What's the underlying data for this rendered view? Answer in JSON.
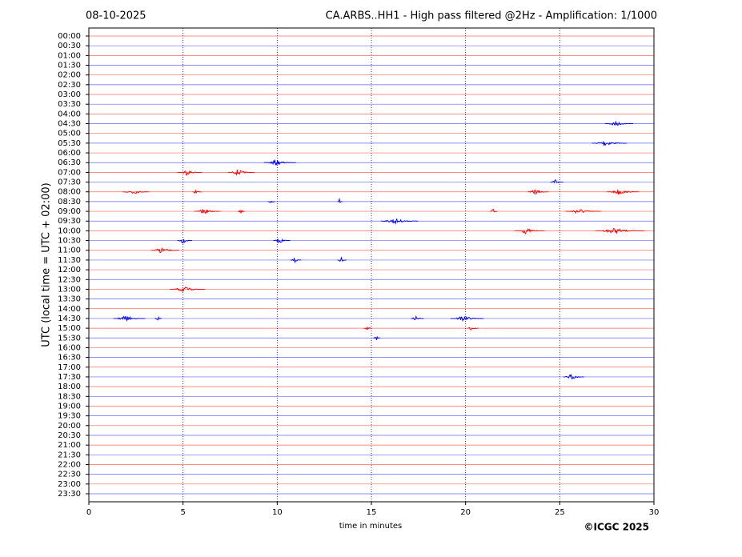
{
  "chart_data": {
    "type": "helicorder",
    "date": "08-10-2025",
    "title": "CA.ARBS..HH1 - High pass filtered @2Hz - Amplification: 1/1000",
    "xlabel": "time in minutes",
    "ylabel": "UTC (local time = UTC + 02:00)",
    "credit": "©ICGC 2025",
    "xlim": [
      0,
      30
    ],
    "xticks": [
      0,
      5,
      10,
      15,
      20,
      25,
      30
    ],
    "grid": true,
    "colors": [
      "#ff0000",
      "#0000ff"
    ],
    "rows": [
      {
        "label": "00:00",
        "bursts": []
      },
      {
        "label": "00:30",
        "bursts": []
      },
      {
        "label": "01:00",
        "bursts": []
      },
      {
        "label": "01:30",
        "bursts": []
      },
      {
        "label": "02:00",
        "bursts": []
      },
      {
        "label": "02:30",
        "bursts": []
      },
      {
        "label": "03:00",
        "bursts": []
      },
      {
        "label": "03:30",
        "bursts": []
      },
      {
        "label": "04:00",
        "bursts": []
      },
      {
        "label": "04:30",
        "bursts": [
          [
            27.4,
            28.9
          ]
        ]
      },
      {
        "label": "05:00",
        "bursts": []
      },
      {
        "label": "05:30",
        "bursts": [
          [
            26.7,
            28.6
          ]
        ]
      },
      {
        "label": "06:00",
        "bursts": []
      },
      {
        "label": "06:30",
        "bursts": [
          [
            9.3,
            11.0
          ]
        ]
      },
      {
        "label": "07:00",
        "bursts": [
          [
            4.7,
            6.0
          ],
          [
            7.4,
            8.8
          ]
        ]
      },
      {
        "label": "07:30",
        "bursts": [
          [
            24.5,
            25.2
          ]
        ]
      },
      {
        "label": "08:00",
        "bursts": [
          [
            1.8,
            3.2
          ],
          [
            5.5,
            6.0
          ],
          [
            23.3,
            24.4
          ],
          [
            27.5,
            29.2
          ]
        ]
      },
      {
        "label": "08:30",
        "bursts": [
          [
            9.5,
            9.9
          ],
          [
            13.2,
            13.5
          ]
        ]
      },
      {
        "label": "09:00",
        "bursts": [
          [
            5.6,
            7.0
          ],
          [
            7.9,
            8.3
          ],
          [
            21.3,
            21.7
          ],
          [
            25.3,
            27.2
          ]
        ]
      },
      {
        "label": "09:30",
        "bursts": [
          [
            15.5,
            17.5
          ]
        ]
      },
      {
        "label": "10:00",
        "bursts": [
          [
            22.6,
            24.2
          ],
          [
            26.9,
            29.5
          ]
        ]
      },
      {
        "label": "10:30",
        "bursts": [
          [
            4.7,
            5.5
          ],
          [
            9.8,
            10.7
          ]
        ]
      },
      {
        "label": "11:00",
        "bursts": [
          [
            3.3,
            4.8
          ]
        ]
      },
      {
        "label": "11:30",
        "bursts": [
          [
            10.7,
            11.3
          ],
          [
            13.2,
            13.7
          ]
        ]
      },
      {
        "label": "12:00",
        "bursts": []
      },
      {
        "label": "12:30",
        "bursts": []
      },
      {
        "label": "13:00",
        "bursts": [
          [
            4.3,
            6.2
          ]
        ]
      },
      {
        "label": "13:30",
        "bursts": []
      },
      {
        "label": "14:00",
        "bursts": []
      },
      {
        "label": "14:30",
        "bursts": [
          [
            1.3,
            3.0
          ],
          [
            3.5,
            3.9
          ],
          [
            17.1,
            17.8
          ],
          [
            19.2,
            21.0
          ]
        ]
      },
      {
        "label": "15:00",
        "bursts": [
          [
            14.6,
            15.0
          ],
          [
            20.1,
            20.7
          ]
        ]
      },
      {
        "label": "15:30",
        "bursts": [
          [
            15.1,
            15.5
          ]
        ]
      },
      {
        "label": "16:00",
        "bursts": []
      },
      {
        "label": "16:30",
        "bursts": []
      },
      {
        "label": "17:00",
        "bursts": []
      },
      {
        "label": "17:30",
        "bursts": [
          [
            25.2,
            26.3
          ]
        ]
      },
      {
        "label": "18:00",
        "bursts": []
      },
      {
        "label": "18:30",
        "bursts": []
      },
      {
        "label": "19:00",
        "bursts": []
      },
      {
        "label": "19:30",
        "bursts": []
      },
      {
        "label": "20:00",
        "bursts": []
      },
      {
        "label": "20:30",
        "bursts": []
      },
      {
        "label": "21:00",
        "bursts": []
      },
      {
        "label": "21:30",
        "bursts": []
      },
      {
        "label": "22:00",
        "bursts": []
      },
      {
        "label": "22:30",
        "bursts": []
      },
      {
        "label": "23:00",
        "bursts": []
      },
      {
        "label": "23:30",
        "bursts": []
      }
    ]
  }
}
